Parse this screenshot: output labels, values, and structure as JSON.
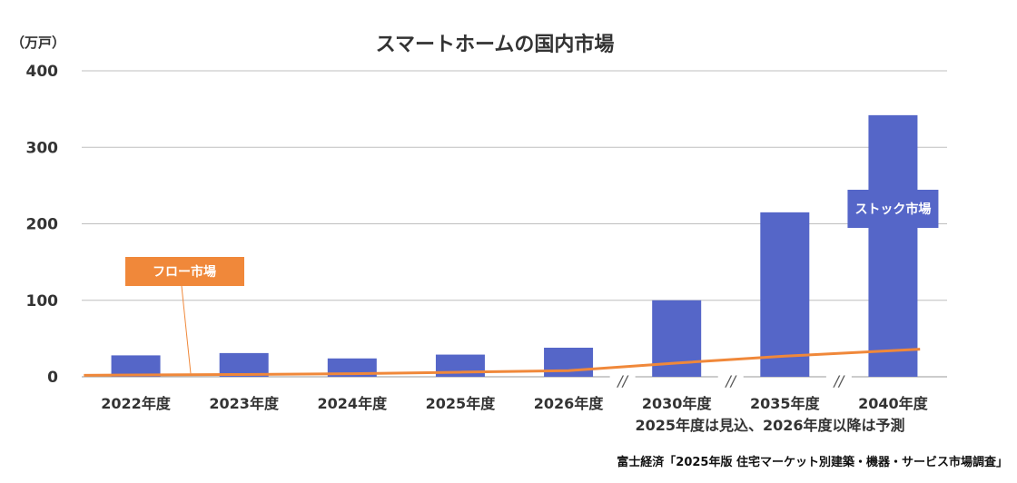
{
  "chart_data": {
    "type": "bar",
    "title": "スマートホームの国内市場",
    "unit_label": "（万戸）",
    "categories": [
      "2022年度",
      "2023年度",
      "2024年度",
      "2025年度",
      "2026年度",
      "2030年度",
      "2035年度",
      "2040年度"
    ],
    "series": [
      {
        "name": "ストック市場",
        "kind": "bar",
        "color": "#5566c8",
        "values": [
          28,
          31,
          24,
          29,
          38,
          100,
          215,
          342
        ]
      },
      {
        "name": "フロー市場",
        "kind": "line",
        "color": "#f0883a",
        "values": [
          2,
          3,
          4,
          6,
          8,
          18,
          27,
          36
        ]
      }
    ],
    "yticks": [
      0,
      100,
      200,
      300,
      400
    ],
    "ylim": [
      0,
      400
    ],
    "grid": true,
    "axis_break_marks": [
      "//",
      "//",
      "//"
    ],
    "note": "2025年度は見込、2026年度以降は予測",
    "source": "富士経済「2025年版 住宅マーケット別建築・機器・サービス市場調査」"
  }
}
